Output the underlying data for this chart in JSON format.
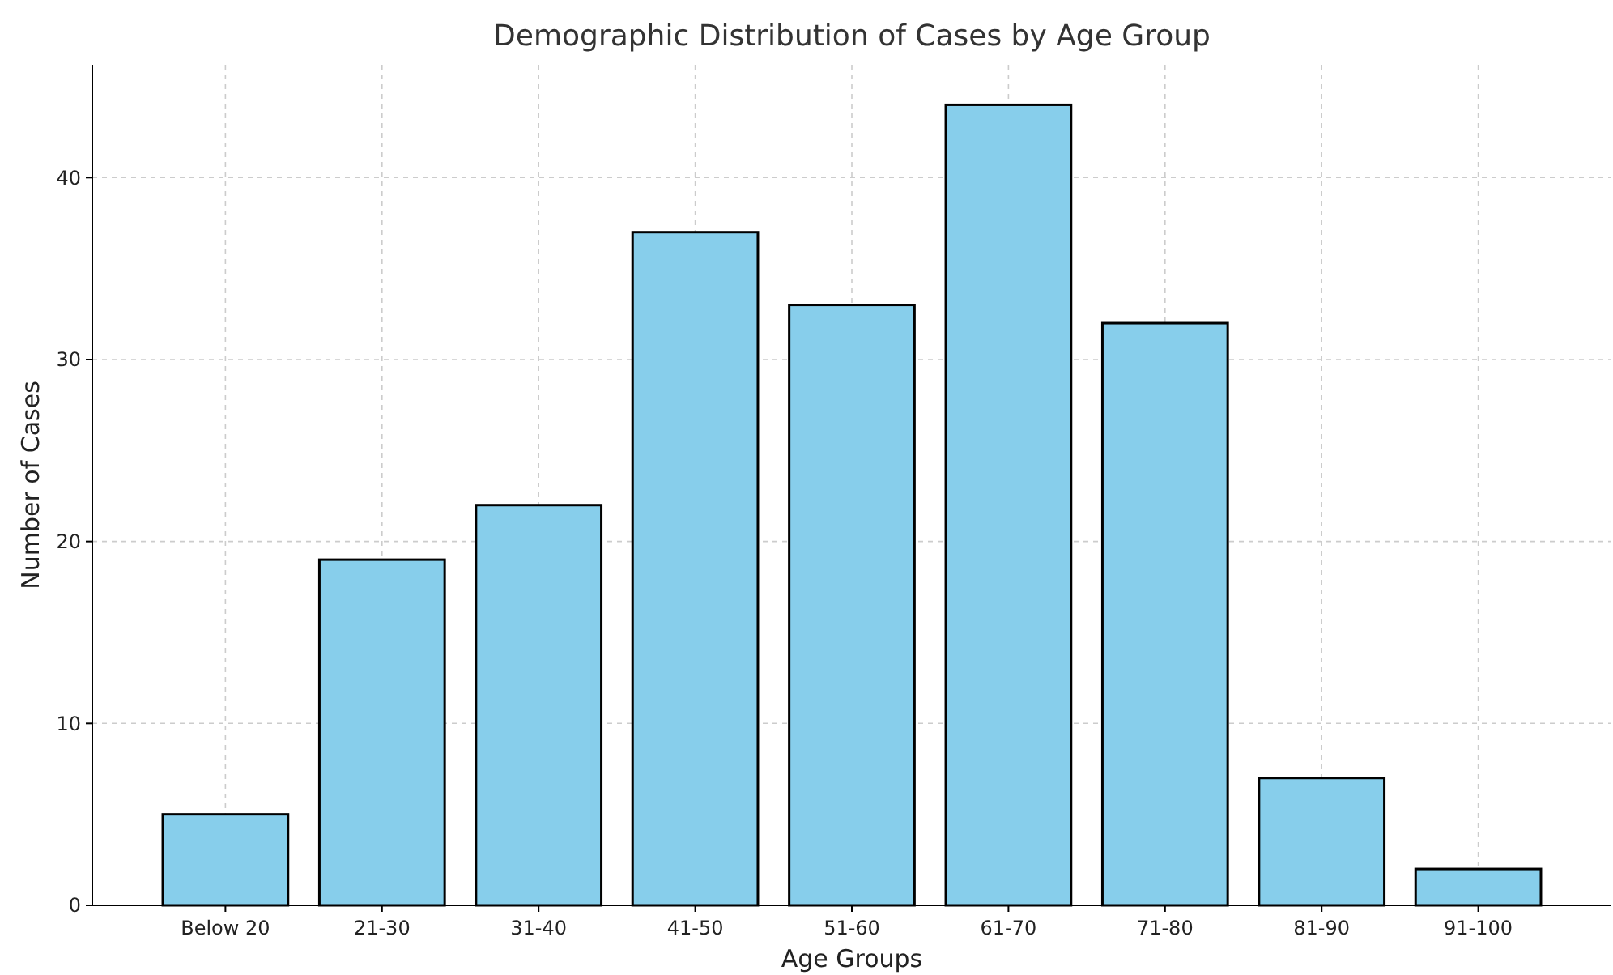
{
  "chart_data": {
    "type": "bar",
    "title": "Demographic Distribution of Cases by Age Group",
    "xlabel": "Age Groups",
    "ylabel": "Number of Cases",
    "categories": [
      "Below 20",
      "21-30",
      "31-40",
      "41-50",
      "51-60",
      "61-70",
      "71-80",
      "81-90",
      "91-100"
    ],
    "values": [
      5,
      19,
      22,
      37,
      33,
      44,
      32,
      7,
      2
    ],
    "color": "#87ceeb",
    "ylim": [
      0,
      46.2
    ],
    "yticks": [
      0,
      10,
      20,
      30,
      40
    ],
    "grid": true
  }
}
